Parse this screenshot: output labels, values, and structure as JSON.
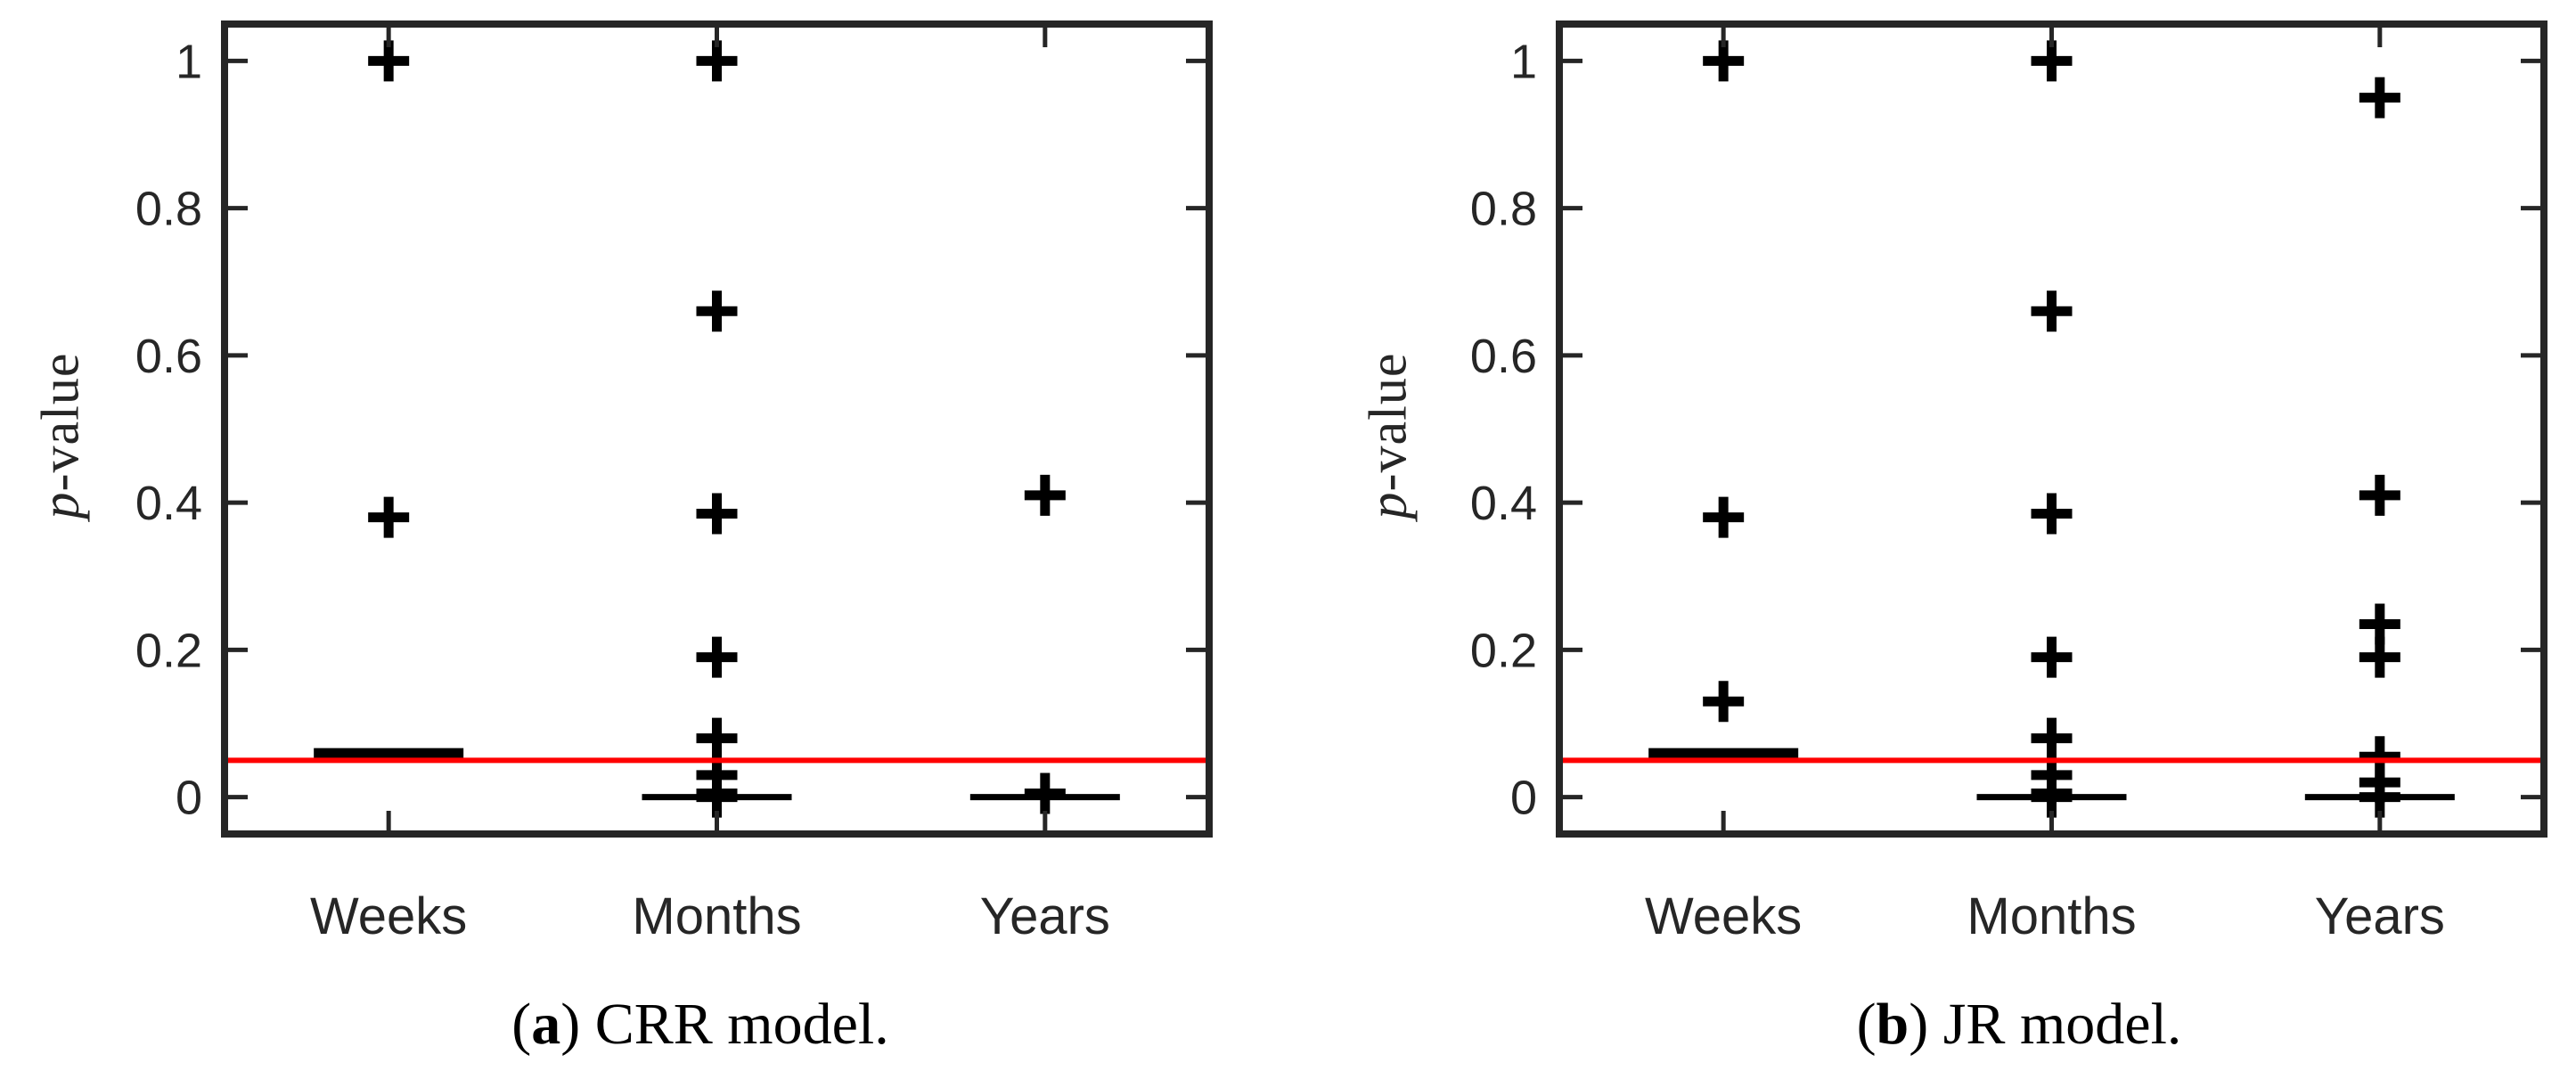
{
  "figure": {
    "ylabel_italic": "p",
    "ylabel_rest": "-value",
    "categories": [
      "Weeks",
      "Months",
      "Years"
    ],
    "ytick_values": [
      0,
      0.2,
      0.4,
      0.6,
      0.8,
      1
    ],
    "ytick_labels": [
      "0",
      "0.2",
      "0.4",
      "0.6",
      "0.8",
      "1"
    ],
    "ylim": [
      -0.05,
      1.05
    ],
    "significance_line": {
      "value": 0.05,
      "color": "#ff0000"
    },
    "colors": {
      "axis": "#262626",
      "marker": "#000000",
      "background": "#ffffff"
    }
  },
  "chart_data": [
    {
      "type": "boxplot",
      "title": "(a) CRR model.",
      "caption": {
        "pre": "(",
        "bold": "a",
        "post": ") CRR model."
      },
      "ylabel": "p-value",
      "categories": [
        "Weeks",
        "Months",
        "Years"
      ],
      "ylim": [
        -0.05,
        1.05
      ],
      "reference_line": 0.05,
      "series": [
        {
          "category": "Weeks",
          "median": 0.06,
          "outliers": [
            1.0,
            0.38
          ]
        },
        {
          "category": "Months",
          "median": 0.0,
          "outliers": [
            1.0,
            0.66,
            0.385,
            0.19,
            0.08,
            0.03,
            0.005,
            0.0
          ]
        },
        {
          "category": "Years",
          "median": 0.0,
          "outliers": [
            0.41,
            0.005
          ]
        }
      ]
    },
    {
      "type": "boxplot",
      "title": "(b) JR model.",
      "caption": {
        "pre": "(",
        "bold": "b",
        "post": ") JR model."
      },
      "ylabel": "p-value",
      "categories": [
        "Weeks",
        "Months",
        "Years"
      ],
      "ylim": [
        -0.05,
        1.05
      ],
      "reference_line": 0.05,
      "series": [
        {
          "category": "Weeks",
          "median": 0.06,
          "outliers": [
            1.0,
            0.38,
            0.13
          ]
        },
        {
          "category": "Months",
          "median": 0.0,
          "outliers": [
            1.0,
            0.66,
            0.385,
            0.19,
            0.08,
            0.03,
            0.005,
            0.0
          ]
        },
        {
          "category": "Years",
          "median": 0.0,
          "outliers": [
            0.95,
            0.41,
            0.235,
            0.19,
            0.055,
            0.02,
            0.0
          ]
        }
      ]
    }
  ]
}
